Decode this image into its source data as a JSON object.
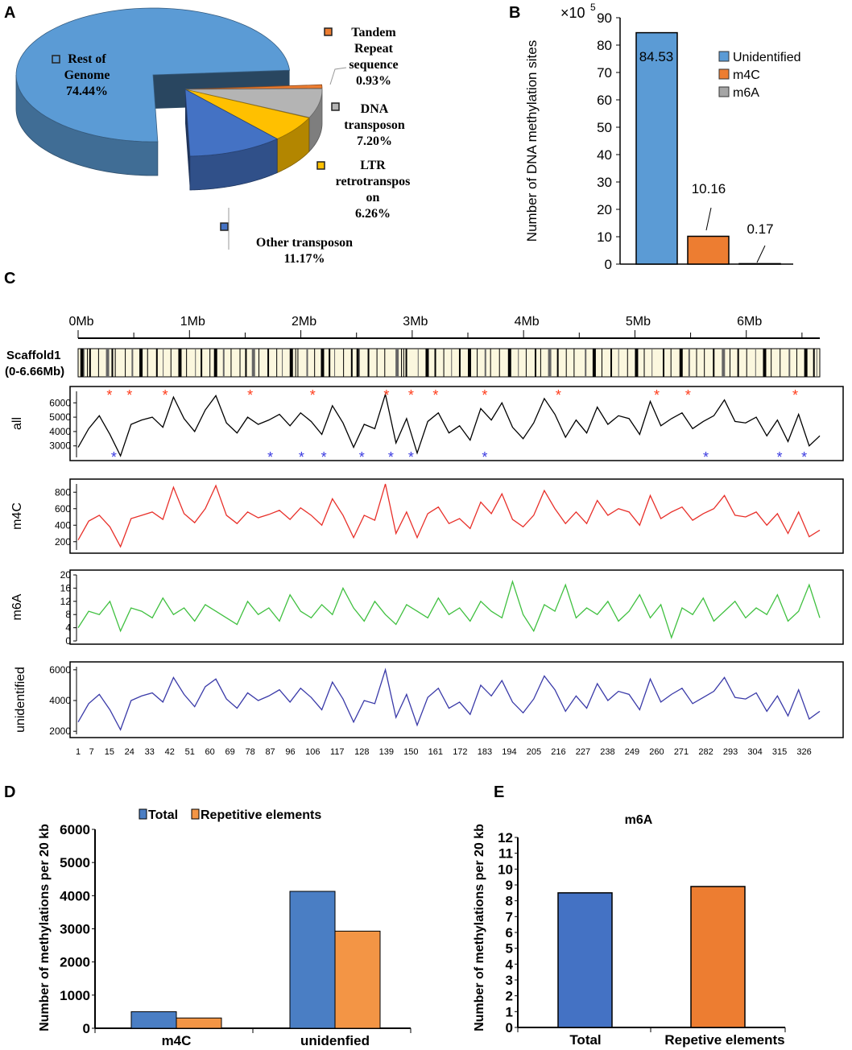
{
  "chart_data": [
    {
      "panel": "A",
      "type": "pie",
      "slices": [
        {
          "label": "Rest of Genome",
          "pct": "74.44%",
          "value": 74.44,
          "color": "#5b9bd5"
        },
        {
          "label": "Tandem Repeat sequence",
          "pct": "0.93%",
          "value": 0.93,
          "color": "#ed7d31"
        },
        {
          "label": "DNA transposon",
          "pct": "7.20%",
          "value": 7.2,
          "color": "#b4b4b4"
        },
        {
          "label": "LTR retrotranspos on",
          "pct": "6.26%",
          "value": 6.26,
          "color": "#ffc000"
        },
        {
          "label": "Other transposon",
          "pct": "11.17%",
          "value": 11.17,
          "color": "#4472c4"
        }
      ]
    },
    {
      "panel": "B",
      "type": "bar",
      "multiplier": "×10",
      "multiplier_exp": "5",
      "ylabel": "Number of DNA methylation sites",
      "ylim": [
        0,
        90
      ],
      "yticks": [
        0,
        10,
        20,
        30,
        40,
        50,
        60,
        70,
        80,
        90
      ],
      "categories": [
        "Unidentified",
        "m4C",
        "m6A"
      ],
      "values": [
        84.53,
        10.16,
        0.17
      ],
      "data_labels": [
        "84.53",
        "10.16",
        "0.17"
      ],
      "colors": [
        "#5b9bd5",
        "#ed7d31",
        "#a5a5a5"
      ],
      "legend": "right"
    },
    {
      "panel": "C",
      "type": "line",
      "scaffold_label": "Scaffold1",
      "scaffold_range": "(0-6.66Mb)",
      "mb_ticks": [
        "0Mb",
        "1Mb",
        "2Mb",
        "3Mb",
        "4Mb",
        "5Mb",
        "6Mb"
      ],
      "scaffold_marks_mb": [
        0.02,
        0.05,
        0.08,
        0.1,
        0.18,
        0.25,
        0.3,
        0.33,
        0.42,
        0.48,
        0.55,
        0.62,
        0.7,
        0.76,
        0.83,
        0.9,
        0.97,
        1.05,
        1.1,
        1.18,
        1.22,
        1.3,
        1.37,
        1.45,
        1.5,
        1.56,
        1.62,
        1.7,
        1.78,
        1.83,
        1.9,
        1.95,
        1.97,
        2.05,
        2.12,
        2.18,
        2.25,
        2.3,
        2.38,
        2.45,
        2.5,
        2.52,
        2.6,
        2.68,
        2.75,
        2.85,
        2.9,
        2.92,
        2.94,
        3.05,
        3.12,
        3.2,
        3.28,
        3.35,
        3.42,
        3.5,
        3.58,
        3.65,
        3.7,
        3.78,
        3.86,
        3.95,
        4.02,
        4.1,
        4.15,
        4.22,
        4.3,
        4.38,
        4.45,
        4.55,
        4.62,
        4.7,
        4.78,
        4.85,
        4.93,
        5.0,
        5.08,
        5.15,
        5.25,
        5.32,
        5.4,
        5.48,
        5.55,
        5.62,
        5.7,
        5.78,
        5.85,
        5.92,
        6.0,
        6.08,
        6.15,
        6.22,
        6.3,
        6.38,
        6.45,
        6.52,
        6.6,
        6.63
      ],
      "x_ticks": [
        "1",
        "7",
        "15",
        "24",
        "33",
        "42",
        "51",
        "60",
        "69",
        "78",
        "87",
        "96",
        "106",
        "117",
        "128",
        "139",
        "150",
        "161",
        "172",
        "183",
        "194",
        "205",
        "216",
        "227",
        "238",
        "249",
        "260",
        "271",
        "282",
        "293",
        "304",
        "315",
        "326"
      ],
      "x_max": 333,
      "tracks": [
        {
          "label": "all",
          "color": "#000000",
          "yticks": [
            3000,
            4000,
            5000,
            6000
          ],
          "ylim": [
            2200,
            6800
          ],
          "values": [
            2900,
            4200,
            5100,
            3800,
            2300,
            4500,
            4800,
            5000,
            4300,
            6400,
            4900,
            4000,
            5500,
            6500,
            4600,
            3900,
            5000,
            4500,
            4800,
            5200,
            4400,
            5300,
            4700,
            3800,
            5800,
            4600,
            2900,
            4500,
            4200,
            6600,
            3200,
            4900,
            2500,
            4700,
            5300,
            3900,
            4400,
            3400,
            5600,
            4800,
            6000,
            4300,
            3500,
            4600,
            6300,
            5200,
            3600,
            4800,
            3900,
            5700,
            4500,
            5100,
            4900,
            3800,
            6100,
            4400,
            4900,
            5300,
            4200,
            4700,
            5100,
            6200,
            4700,
            4600,
            5000,
            3700,
            4800,
            3300,
            5200,
            3000,
            3700
          ],
          "red_star_idx": [
            15,
            24,
            40,
            78,
            106,
            139,
            150,
            161,
            183,
            216,
            260,
            274,
            322
          ],
          "blue_star_idx": [
            17,
            87,
            101,
            111,
            128,
            141,
            150,
            183,
            282,
            315,
            326
          ]
        },
        {
          "label": "m4C",
          "color": "#e8302a",
          "yticks": [
            200,
            400,
            600,
            800
          ],
          "ylim": [
            100,
            900
          ],
          "values": [
            220,
            450,
            520,
            380,
            140,
            480,
            520,
            560,
            470,
            860,
            540,
            430,
            600,
            880,
            520,
            420,
            560,
            490,
            530,
            580,
            470,
            610,
            520,
            400,
            720,
            520,
            250,
            520,
            460,
            900,
            300,
            560,
            250,
            540,
            620,
            420,
            480,
            360,
            680,
            540,
            780,
            470,
            380,
            520,
            820,
            600,
            420,
            560,
            420,
            700,
            520,
            600,
            560,
            400,
            760,
            480,
            560,
            620,
            460,
            540,
            600,
            760,
            520,
            500,
            560,
            400,
            540,
            300,
            560,
            260,
            340
          ]
        },
        {
          "label": "m6A",
          "color": "#40c040",
          "yticks": [
            0,
            4,
            8,
            12,
            16,
            20
          ],
          "ylim": [
            0,
            20
          ],
          "values": [
            4,
            9,
            8,
            12,
            3,
            10,
            9,
            7,
            13,
            8,
            10,
            6,
            11,
            9,
            7,
            5,
            12,
            8,
            10,
            6,
            14,
            9,
            7,
            11,
            8,
            16,
            10,
            6,
            12,
            8,
            5,
            11,
            9,
            7,
            13,
            8,
            10,
            6,
            12,
            9,
            7,
            18,
            8,
            3,
            11,
            9,
            17,
            7,
            10,
            8,
            12,
            6,
            9,
            14,
            7,
            11,
            1,
            10,
            8,
            13,
            6,
            9,
            12,
            7,
            10,
            8,
            14,
            6,
            9,
            17,
            7
          ]
        },
        {
          "label": "unidentified",
          "color": "#3a3aa8",
          "yticks": [
            2000,
            4000,
            6000
          ],
          "ylim": [
            1800,
            6200
          ],
          "values": [
            2600,
            3800,
            4400,
            3400,
            2100,
            4000,
            4300,
            4500,
            3900,
            5500,
            4400,
            3600,
            4900,
            5400,
            4100,
            3500,
            4500,
            4000,
            4300,
            4700,
            3900,
            4800,
            4200,
            3400,
            5200,
            4100,
            2600,
            4000,
            3800,
            6000,
            2900,
            4400,
            2400,
            4200,
            4800,
            3500,
            3900,
            3100,
            5000,
            4300,
            5300,
            3900,
            3200,
            4100,
            5600,
            4700,
            3300,
            4300,
            3500,
            5100,
            4000,
            4600,
            4400,
            3400,
            5400,
            3900,
            4400,
            4800,
            3800,
            4200,
            4600,
            5500,
            4200,
            4100,
            4500,
            3300,
            4300,
            3000,
            4700,
            2800,
            3300
          ]
        }
      ]
    },
    {
      "panel": "D",
      "type": "bar",
      "ylabel": "Number of methylations per 20 kb",
      "ylim": [
        0,
        6000
      ],
      "yticks": [
        0,
        1000,
        2000,
        3000,
        4000,
        5000,
        6000
      ],
      "categories": [
        "m4C",
        "unidenfied"
      ],
      "legend": "top",
      "series": [
        {
          "name": "Total",
          "values": [
            500,
            4130
          ],
          "color": "#4a7ec4"
        },
        {
          "name": "Repetitive elements",
          "values": [
            310,
            2930
          ],
          "color": "#f39545"
        }
      ]
    },
    {
      "panel": "E",
      "type": "bar",
      "title": "m6A",
      "ylabel": "Number of methylations per 20 kb",
      "ylim": [
        0,
        12
      ],
      "yticks": [
        0,
        1,
        2,
        3,
        4,
        5,
        6,
        7,
        8,
        9,
        10,
        11,
        12
      ],
      "categories": [
        "Total",
        "Repetive elements"
      ],
      "values": [
        8.5,
        8.9
      ],
      "colors": [
        "#4472c4",
        "#ed7d31"
      ]
    }
  ],
  "panel_letters": [
    "A",
    "B",
    "C",
    "D",
    "E"
  ]
}
